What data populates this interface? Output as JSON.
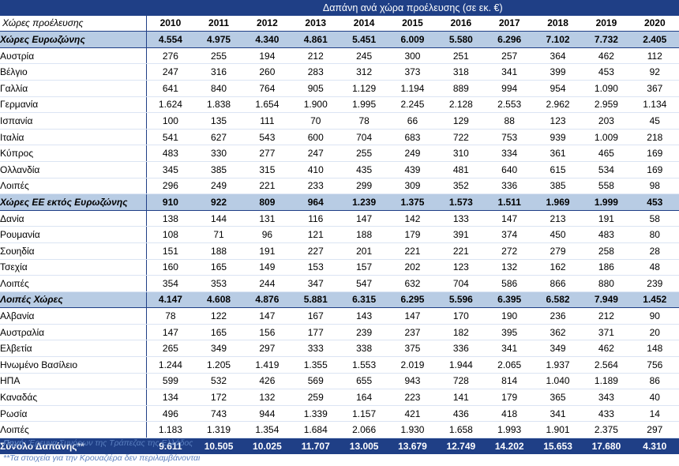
{
  "table": {
    "title": "Δαπάνη ανά χώρα προέλευσης (σε εκ. €)",
    "corner_label": "Χώρες προέλευσης",
    "years": [
      "2010",
      "2011",
      "2012",
      "2013",
      "2014",
      "2015",
      "2016",
      "2017",
      "2018",
      "2019",
      "2020"
    ],
    "rows": [
      {
        "type": "group",
        "name": "Χώρες Ευρωζώνης",
        "values": [
          "4.554",
          "4.975",
          "4.340",
          "4.861",
          "5.451",
          "6.009",
          "5.580",
          "6.296",
          "7.102",
          "7.732",
          "2.405"
        ]
      },
      {
        "type": "data",
        "name": "Αυστρία",
        "values": [
          "276",
          "255",
          "194",
          "212",
          "245",
          "300",
          "251",
          "257",
          "364",
          "462",
          "112"
        ]
      },
      {
        "type": "data",
        "name": "Βέλγιο",
        "values": [
          "247",
          "316",
          "260",
          "283",
          "312",
          "373",
          "318",
          "341",
          "399",
          "453",
          "92"
        ]
      },
      {
        "type": "data",
        "name": "Γαλλία",
        "values": [
          "641",
          "840",
          "764",
          "905",
          "1.129",
          "1.194",
          "889",
          "994",
          "954",
          "1.090",
          "367"
        ]
      },
      {
        "type": "data",
        "name": "Γερμανία",
        "values": [
          "1.624",
          "1.838",
          "1.654",
          "1.900",
          "1.995",
          "2.245",
          "2.128",
          "2.553",
          "2.962",
          "2.959",
          "1.134"
        ]
      },
      {
        "type": "data",
        "name": "Ισπανία",
        "values": [
          "100",
          "135",
          "111",
          "70",
          "78",
          "66",
          "129",
          "88",
          "123",
          "203",
          "45"
        ]
      },
      {
        "type": "data",
        "name": "Ιταλία",
        "values": [
          "541",
          "627",
          "543",
          "600",
          "704",
          "683",
          "722",
          "753",
          "939",
          "1.009",
          "218"
        ]
      },
      {
        "type": "data",
        "name": "Κύπρος",
        "values": [
          "483",
          "330",
          "277",
          "247",
          "255",
          "249",
          "310",
          "334",
          "361",
          "465",
          "169"
        ]
      },
      {
        "type": "data",
        "name": "Ολλανδία",
        "values": [
          "345",
          "385",
          "315",
          "410",
          "435",
          "439",
          "481",
          "640",
          "615",
          "534",
          "169"
        ]
      },
      {
        "type": "data",
        "name": "Λοιπές",
        "values": [
          "296",
          "249",
          "221",
          "233",
          "299",
          "309",
          "352",
          "336",
          "385",
          "558",
          "98"
        ]
      },
      {
        "type": "group",
        "name": "Χώρες ΕΕ εκτός Ευρωζώνης",
        "values": [
          "910",
          "922",
          "809",
          "964",
          "1.239",
          "1.375",
          "1.573",
          "1.511",
          "1.969",
          "1.999",
          "453"
        ]
      },
      {
        "type": "data",
        "name": "Δανία",
        "values": [
          "138",
          "144",
          "131",
          "116",
          "147",
          "142",
          "133",
          "147",
          "213",
          "191",
          "58"
        ]
      },
      {
        "type": "data",
        "name": "Ρουμανία",
        "values": [
          "108",
          "71",
          "96",
          "121",
          "188",
          "179",
          "391",
          "374",
          "450",
          "483",
          "80"
        ]
      },
      {
        "type": "data",
        "name": "Σουηδία",
        "values": [
          "151",
          "188",
          "191",
          "227",
          "201",
          "221",
          "221",
          "272",
          "279",
          "258",
          "28"
        ]
      },
      {
        "type": "data",
        "name": "Τσεχία",
        "values": [
          "160",
          "165",
          "149",
          "153",
          "157",
          "202",
          "123",
          "132",
          "162",
          "186",
          "48"
        ]
      },
      {
        "type": "data",
        "name": "Λοιπές",
        "values": [
          "354",
          "353",
          "244",
          "347",
          "547",
          "632",
          "704",
          "586",
          "866",
          "880",
          "239"
        ]
      },
      {
        "type": "group",
        "name": "Λοιπές Χώρες",
        "values": [
          "4.147",
          "4.608",
          "4.876",
          "5.881",
          "6.315",
          "6.295",
          "5.596",
          "6.395",
          "6.582",
          "7.949",
          "1.452"
        ]
      },
      {
        "type": "data",
        "name": "Αλβανία",
        "values": [
          "78",
          "122",
          "147",
          "167",
          "143",
          "147",
          "170",
          "190",
          "236",
          "212",
          "90"
        ]
      },
      {
        "type": "data",
        "name": "Αυστραλία",
        "values": [
          "147",
          "165",
          "156",
          "177",
          "239",
          "237",
          "182",
          "395",
          "362",
          "371",
          "20"
        ]
      },
      {
        "type": "data",
        "name": "Ελβετία",
        "values": [
          "265",
          "349",
          "297",
          "333",
          "338",
          "375",
          "336",
          "341",
          "349",
          "462",
          "148"
        ]
      },
      {
        "type": "data",
        "name": "Ηνωμένο Βασίλειο",
        "values": [
          "1.244",
          "1.205",
          "1.419",
          "1.355",
          "1.553",
          "2.019",
          "1.944",
          "2.065",
          "1.937",
          "2.564",
          "756"
        ]
      },
      {
        "type": "data",
        "name": "ΗΠΑ",
        "values": [
          "599",
          "532",
          "426",
          "569",
          "655",
          "943",
          "728",
          "814",
          "1.040",
          "1.189",
          "86"
        ]
      },
      {
        "type": "data",
        "name": "Καναδάς",
        "values": [
          "134",
          "172",
          "132",
          "259",
          "164",
          "223",
          "141",
          "179",
          "365",
          "343",
          "40"
        ]
      },
      {
        "type": "data",
        "name": "Ρωσία",
        "values": [
          "496",
          "743",
          "944",
          "1.339",
          "1.157",
          "421",
          "436",
          "418",
          "341",
          "433",
          "14"
        ]
      },
      {
        "type": "data",
        "name": "Λοιπές",
        "values": [
          "1.183",
          "1.319",
          "1.354",
          "1.684",
          "2.066",
          "1.930",
          "1.658",
          "1.993",
          "1.901",
          "2.375",
          "297"
        ]
      },
      {
        "type": "total",
        "name": "Σύνολο Δαπάνης**",
        "values": [
          "9.611",
          "10.505",
          "10.025",
          "11.707",
          "13.005",
          "13.679",
          "12.749",
          "14.202",
          "15.653",
          "17.680",
          "4.310"
        ]
      }
    ]
  },
  "notes": {
    "source_label": "Πηγή",
    "source_text": ": Έρευνα Συνόρων της Τράπεζας της Ελλάδος",
    "footnote": "**Τα στοιχεία για την Κρουαζιέρα δεν περιλαμβάνονται"
  },
  "colors": {
    "header_bg": "#1f3f86",
    "group_bg": "#b8cce4",
    "note_text": "#5a7fbf"
  }
}
